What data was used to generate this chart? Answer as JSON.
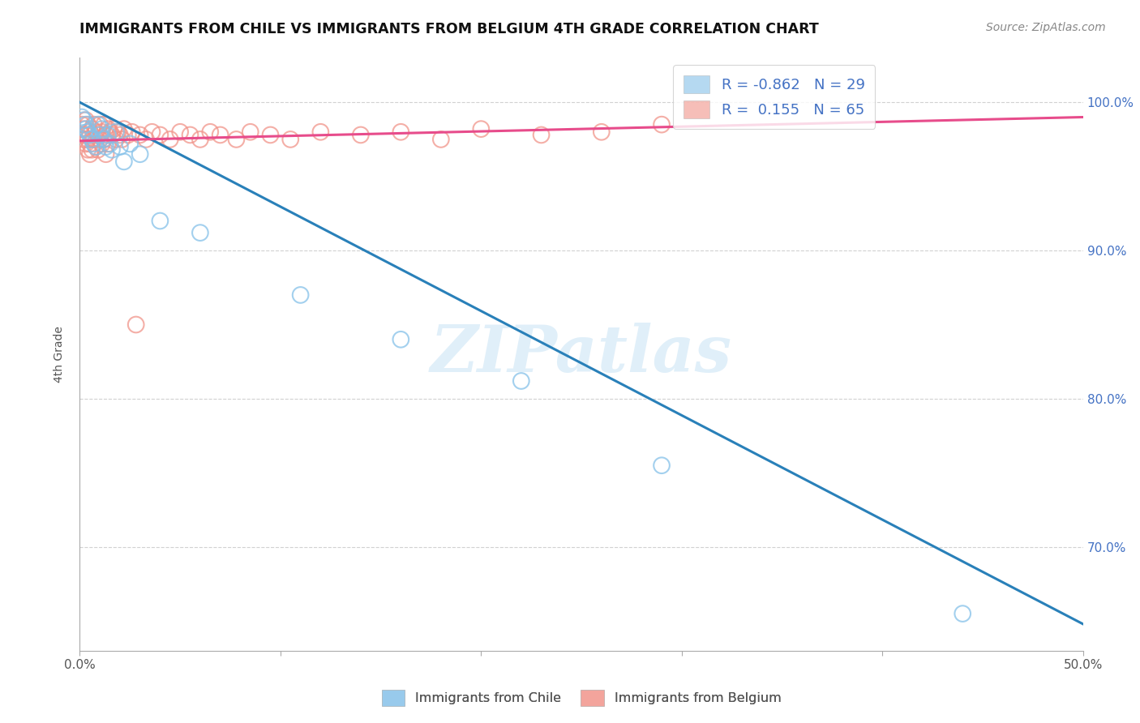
{
  "title": "IMMIGRANTS FROM CHILE VS IMMIGRANTS FROM BELGIUM 4TH GRADE CORRELATION CHART",
  "source": "Source: ZipAtlas.com",
  "ylabel": "4th Grade",
  "xlim": [
    0.0,
    0.5
  ],
  "ylim": [
    0.63,
    1.03
  ],
  "xticks": [
    0.0,
    0.1,
    0.2,
    0.3,
    0.4,
    0.5
  ],
  "xticklabels": [
    "0.0%",
    "",
    "",
    "",
    "",
    "50.0%"
  ],
  "yticks": [
    0.7,
    0.8,
    0.9,
    1.0
  ],
  "yticklabels": [
    "70.0%",
    "80.0%",
    "90.0%",
    "100.0%"
  ],
  "legend_r_chile": "-0.862",
  "legend_n_chile": "29",
  "legend_r_belgium": "0.155",
  "legend_n_belgium": "65",
  "chile_color": "#85c1e9",
  "belgium_color": "#f1948a",
  "chile_line_color": "#2980b9",
  "belgium_line_color": "#e74c8b",
  "watermark": "ZIPatlas",
  "chile_scatter_x": [
    0.001,
    0.002,
    0.003,
    0.003,
    0.004,
    0.005,
    0.006,
    0.007,
    0.008,
    0.009,
    0.01,
    0.011,
    0.012,
    0.013,
    0.014,
    0.015,
    0.016,
    0.018,
    0.02,
    0.022,
    0.025,
    0.03,
    0.04,
    0.06,
    0.11,
    0.16,
    0.22,
    0.29,
    0.44
  ],
  "chile_scatter_y": [
    0.99,
    0.988,
    0.985,
    0.982,
    0.98,
    0.978,
    0.975,
    0.972,
    0.97,
    0.985,
    0.978,
    0.982,
    0.975,
    0.97,
    0.978,
    0.972,
    0.968,
    0.98,
    0.97,
    0.96,
    0.972,
    0.965,
    0.92,
    0.912,
    0.87,
    0.84,
    0.812,
    0.755,
    0.655
  ],
  "belgium_scatter_x": [
    0.001,
    0.001,
    0.002,
    0.002,
    0.003,
    0.003,
    0.003,
    0.004,
    0.004,
    0.004,
    0.005,
    0.005,
    0.005,
    0.006,
    0.006,
    0.006,
    0.007,
    0.007,
    0.008,
    0.008,
    0.009,
    0.009,
    0.01,
    0.01,
    0.011,
    0.011,
    0.012,
    0.012,
    0.013,
    0.013,
    0.014,
    0.014,
    0.015,
    0.016,
    0.017,
    0.018,
    0.019,
    0.02,
    0.021,
    0.022,
    0.024,
    0.026,
    0.028,
    0.03,
    0.033,
    0.036,
    0.04,
    0.045,
    0.05,
    0.055,
    0.06,
    0.065,
    0.07,
    0.078,
    0.085,
    0.095,
    0.105,
    0.12,
    0.14,
    0.16,
    0.18,
    0.2,
    0.23,
    0.26,
    0.29
  ],
  "belgium_scatter_y": [
    0.985,
    0.978,
    0.982,
    0.975,
    0.988,
    0.978,
    0.972,
    0.985,
    0.975,
    0.968,
    0.98,
    0.972,
    0.965,
    0.982,
    0.975,
    0.968,
    0.985,
    0.975,
    0.98,
    0.97,
    0.978,
    0.968,
    0.985,
    0.975,
    0.98,
    0.972,
    0.985,
    0.975,
    0.978,
    0.965,
    0.982,
    0.972,
    0.98,
    0.978,
    0.982,
    0.975,
    0.98,
    0.978,
    0.975,
    0.982,
    0.978,
    0.98,
    0.85,
    0.978,
    0.975,
    0.98,
    0.978,
    0.975,
    0.98,
    0.978,
    0.975,
    0.98,
    0.978,
    0.975,
    0.98,
    0.978,
    0.975,
    0.98,
    0.978,
    0.98,
    0.975,
    0.982,
    0.978,
    0.98,
    0.985
  ],
  "chile_line_x": [
    0.0,
    0.5
  ],
  "chile_line_y": [
    1.0,
    0.648
  ],
  "belgium_line_x": [
    0.0,
    0.5
  ],
  "belgium_line_y": [
    0.974,
    0.99
  ],
  "grid_color": "#cccccc",
  "background_color": "#ffffff"
}
